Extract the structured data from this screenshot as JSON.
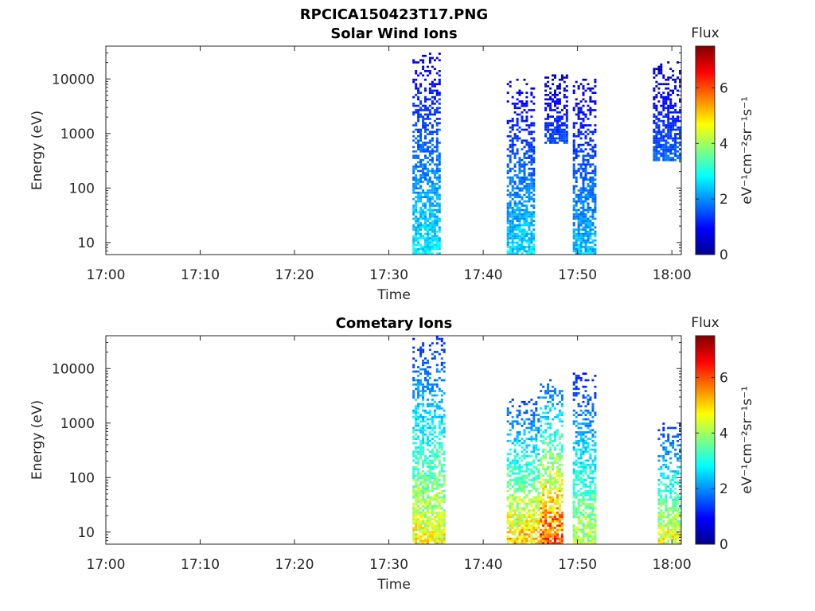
{
  "figure": {
    "title": "RPCICA150423T17.PNG"
  },
  "colorbar": {
    "label_top": "Flux",
    "unit_label": "eV⁻¹cm⁻²sr⁻¹s⁻¹",
    "ticks": [
      "0",
      "2",
      "4",
      "6"
    ],
    "range": [
      0,
      7.5
    ],
    "colormap": "jet"
  },
  "chart_data": [
    {
      "type": "heatmap",
      "title": "Solar Wind Ions",
      "xlabel": "Time",
      "ylabel": "Energy (eV)",
      "x_ticks": [
        "17:00",
        "17:10",
        "17:20",
        "17:30",
        "17:40",
        "17:50",
        "18:00"
      ],
      "y_ticks": [
        "10",
        "100",
        "1000",
        "10000"
      ],
      "y_scale": "log",
      "xlim_minutes": [
        0,
        61
      ],
      "ylim": [
        6,
        40000
      ],
      "bursts": [
        {
          "t_start": 32.5,
          "t_end": 35.5,
          "e_min": 6,
          "e_max": 30000,
          "peak_flux": 3.2
        },
        {
          "t_start": 42.5,
          "t_end": 45.5,
          "e_min": 6,
          "e_max": 10000,
          "peak_flux": 3.0
        },
        {
          "t_start": 46.5,
          "t_end": 49.0,
          "e_min": 600,
          "e_max": 12000,
          "peak_flux": 1.8
        },
        {
          "t_start": 49.5,
          "t_end": 52.0,
          "e_min": 6,
          "e_max": 10000,
          "peak_flux": 2.8
        },
        {
          "t_start": 58.0,
          "t_end": 61.0,
          "e_min": 300,
          "e_max": 20000,
          "peak_flux": 2.0
        }
      ]
    },
    {
      "type": "heatmap",
      "title": "Cometary Ions",
      "xlabel": "Time",
      "ylabel": "Energy (eV)",
      "x_ticks": [
        "17:00",
        "17:10",
        "17:20",
        "17:30",
        "17:40",
        "17:50",
        "18:00"
      ],
      "y_ticks": [
        "10",
        "100",
        "1000",
        "10000"
      ],
      "y_scale": "log",
      "xlim_minutes": [
        0,
        61
      ],
      "ylim": [
        6,
        40000
      ],
      "bursts": [
        {
          "t_start": 32.5,
          "t_end": 35.8,
          "e_min": 6,
          "e_max": 40000,
          "peak_flux": 5.5
        },
        {
          "t_start": 42.5,
          "t_end": 45.8,
          "e_min": 6,
          "e_max": 3000,
          "peak_flux": 6.0
        },
        {
          "t_start": 46.0,
          "t_end": 48.5,
          "e_min": 6,
          "e_max": 6000,
          "peak_flux": 7.2
        },
        {
          "t_start": 49.5,
          "t_end": 52.0,
          "e_min": 6,
          "e_max": 8000,
          "peak_flux": 5.0
        },
        {
          "t_start": 58.5,
          "t_end": 61.0,
          "e_min": 6,
          "e_max": 1000,
          "peak_flux": 5.5
        }
      ]
    }
  ]
}
